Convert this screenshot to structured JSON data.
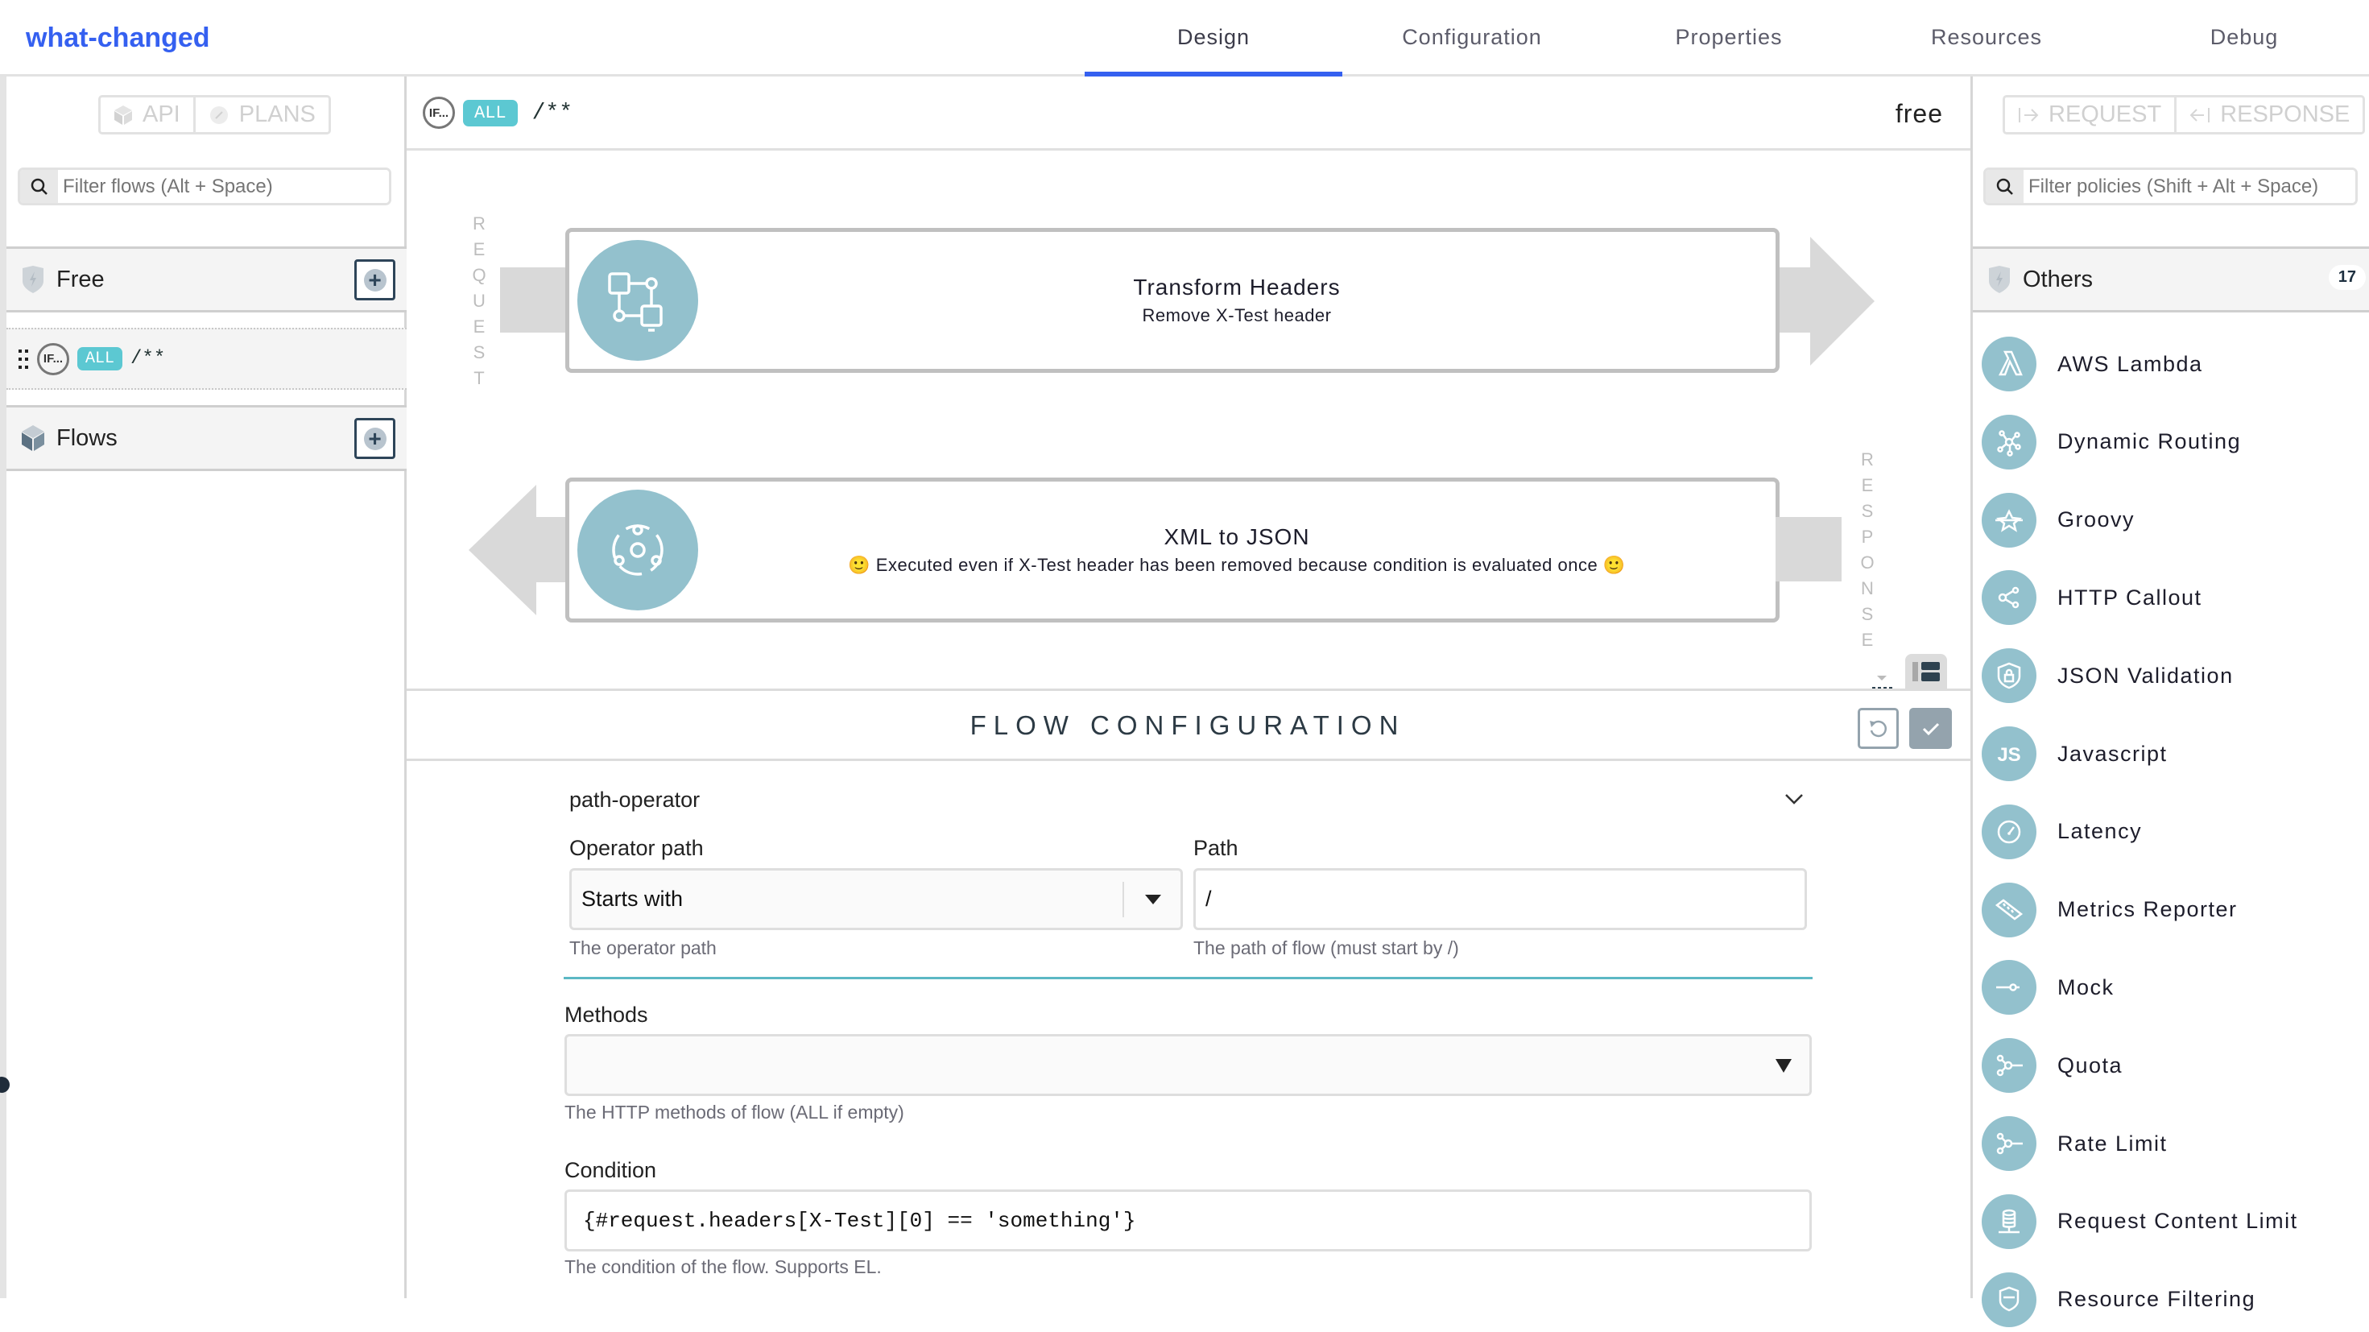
{
  "header": {
    "title": "what-changed",
    "tabs": [
      {
        "label": "Design",
        "active": true
      },
      {
        "label": "Configuration"
      },
      {
        "label": "Properties"
      },
      {
        "label": "Resources"
      },
      {
        "label": "Debug"
      }
    ],
    "accent": "#3560f0"
  },
  "left": {
    "api_label": "API",
    "plans_label": "PLANS",
    "filter_placeholder": "Filter flows (Alt + Space)",
    "plan_section": "Free",
    "flow_item": {
      "condition": "IF...",
      "method": "ALL",
      "path": "/**"
    },
    "flows_section": "Flows"
  },
  "center": {
    "condition": "IF...",
    "method": "ALL",
    "path": "/**",
    "plan": "free",
    "request_label": [
      "R",
      "E",
      "Q",
      "U",
      "E",
      "S",
      "T"
    ],
    "response_label": [
      "R",
      "E",
      "S",
      "P",
      "O",
      "N",
      "S",
      "E"
    ],
    "request_policy": {
      "title": "Transform Headers",
      "description": "Remove X-Test header",
      "icon": "transform-headers-icon"
    },
    "response_policy": {
      "title": "XML to JSON",
      "description": "🙂 Executed even if X-Test header has been removed because condition is evaluated once 🙂",
      "icon": "xml-to-json-icon"
    }
  },
  "config": {
    "title": "FLOW CONFIGURATION",
    "path_operator_section": "path-operator",
    "operator_path_label": "Operator path",
    "operator_path_value": "Starts with",
    "operator_path_hint": "The operator path",
    "path_label": "Path",
    "path_value": "/",
    "path_hint": "The path of flow (must start by /)",
    "methods_label": "Methods",
    "methods_value": "",
    "methods_hint": "The HTTP methods of flow (ALL if empty)",
    "condition_label": "Condition",
    "condition_value": "{#request.headers[X-Test][0] == 'something'}",
    "condition_hint": "The condition of the flow. Supports EL."
  },
  "right": {
    "request_label": "REQUEST",
    "response_label": "RESPONSE",
    "filter_placeholder": "Filter policies (Shift + Alt + Space)",
    "category": "Others",
    "count": "17",
    "policies": [
      {
        "name": "AWS Lambda",
        "icon": "lambda"
      },
      {
        "name": "Dynamic Routing",
        "icon": "routing"
      },
      {
        "name": "Groovy",
        "icon": "groovy"
      },
      {
        "name": "HTTP Callout",
        "icon": "share"
      },
      {
        "name": "JSON Validation",
        "icon": "shield-lock"
      },
      {
        "name": "Javascript",
        "icon": "js"
      },
      {
        "name": "Latency",
        "icon": "gauge"
      },
      {
        "name": "Metrics Reporter",
        "icon": "ruler"
      },
      {
        "name": "Mock",
        "icon": "mock"
      },
      {
        "name": "Quota",
        "icon": "quota"
      },
      {
        "name": "Rate Limit",
        "icon": "rate-limit"
      },
      {
        "name": "Request Content Limit",
        "icon": "database"
      },
      {
        "name": "Resource Filtering",
        "icon": "filter-shield"
      }
    ],
    "icon_color": "#93c1cd"
  }
}
